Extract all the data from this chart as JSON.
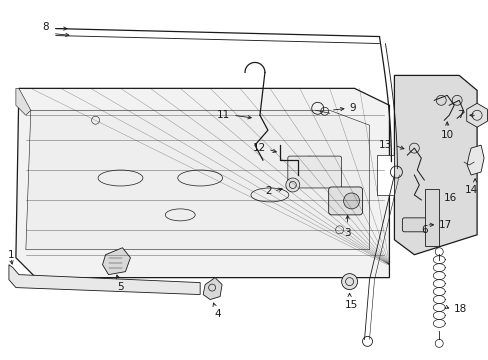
{
  "bg_color": "#ffffff",
  "line_color": "#1a1a1a",
  "gray_light": "#e8e8e8",
  "gray_mid": "#d0d0d0",
  "gray_dark": "#b0b0b0",
  "fig_width": 4.89,
  "fig_height": 3.6,
  "dpi": 100
}
